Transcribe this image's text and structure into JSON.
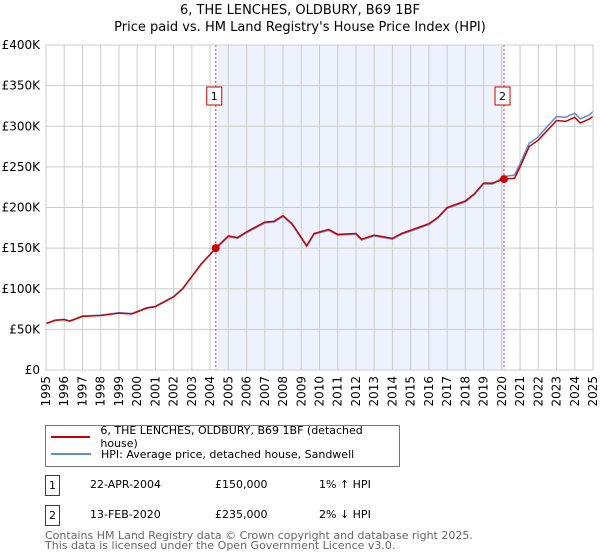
{
  "title": "6, THE LENCHES, OLDBURY, B69 1BF",
  "subtitle": "Price paid vs. HM Land Registry's House Price Index (HPI)",
  "colors": {
    "property": "#cc0000",
    "hpi": "#5b8fd4",
    "shade": "#eef2fc",
    "grid": "#cccccc"
  },
  "chart_data": {
    "type": "line",
    "xlim": [
      1995,
      2025
    ],
    "ylim": [
      0,
      400000
    ],
    "x_ticks": [
      "1995",
      "1996",
      "1997",
      "1998",
      "1999",
      "2000",
      "2001",
      "2002",
      "2003",
      "2004",
      "2005",
      "2006",
      "2007",
      "2008",
      "2009",
      "2010",
      "2011",
      "2012",
      "2013",
      "2014",
      "2015",
      "2016",
      "2017",
      "2018",
      "2019",
      "2020",
      "2021",
      "2022",
      "2023",
      "2024",
      "2025"
    ],
    "y_ticks": [
      {
        "v": 0,
        "label": "£0"
      },
      {
        "v": 50000,
        "label": "£50K"
      },
      {
        "v": 100000,
        "label": "£100K"
      },
      {
        "v": 150000,
        "label": "£150K"
      },
      {
        "v": 200000,
        "label": "£200K"
      },
      {
        "v": 250000,
        "label": "£250K"
      },
      {
        "v": 300000,
        "label": "£300K"
      },
      {
        "v": 350000,
        "label": "£350K"
      },
      {
        "v": 400000,
        "label": "£400K"
      }
    ],
    "grid": true,
    "shaded_range": [
      2004.31,
      2020.12
    ],
    "series": [
      {
        "name": "6, THE LENCHES, OLDBURY, B69 1BF (detached house)",
        "color": "#cc0000",
        "x": [
          1995,
          1995.5,
          1996,
          1996.3,
          1997,
          1998,
          1999,
          1999.7,
          2000.5,
          2001,
          2002,
          2002.5,
          2003,
          2003.5,
          2004.31,
          2005,
          2005.5,
          2006,
          2007,
          2007.5,
          2008,
          2008.5,
          2009.3,
          2009.7,
          2010.5,
          2011,
          2012,
          2012.3,
          2013,
          2014,
          2014.5,
          2015,
          2016,
          2016.5,
          2017,
          2018,
          2018.5,
          2019,
          2019.5,
          2020.12,
          2020.7,
          2021,
          2021.5,
          2022,
          2022.5,
          2023,
          2023.5,
          2024,
          2024.3,
          2024.8,
          2025
        ],
        "y": [
          57000,
          61000,
          62000,
          60000,
          66000,
          67000,
          70000,
          69000,
          76000,
          78000,
          90000,
          100000,
          115000,
          130000,
          150000,
          165000,
          163000,
          170000,
          182000,
          183000,
          190000,
          180000,
          153000,
          168000,
          173000,
          167000,
          168000,
          161000,
          166000,
          162000,
          168000,
          172000,
          180000,
          188000,
          200000,
          208000,
          217000,
          230000,
          230000,
          235000,
          236000,
          250000,
          275000,
          283000,
          295000,
          307000,
          306000,
          311000,
          304000,
          309000,
          312000
        ]
      },
      {
        "name": "HPI: Average price, detached house, Sandwell",
        "color": "#5b8fd4",
        "x": [
          1995,
          1995.5,
          1996,
          1996.3,
          1997,
          1998,
          1999,
          1999.7,
          2000.5,
          2001,
          2002,
          2002.5,
          2003,
          2003.5,
          2004.31,
          2005,
          2005.5,
          2006,
          2007,
          2007.5,
          2008,
          2008.5,
          2009.3,
          2009.7,
          2010.5,
          2011,
          2012,
          2012.3,
          2013,
          2014,
          2014.5,
          2015,
          2016,
          2016.5,
          2017,
          2018,
          2018.5,
          2019,
          2019.5,
          2020.12,
          2020.7,
          2021,
          2021.5,
          2022,
          2022.5,
          2023,
          2023.5,
          2024,
          2024.3,
          2024.8,
          2025
        ],
        "y": [
          57500,
          61500,
          62500,
          60500,
          66500,
          67500,
          70500,
          69500,
          76500,
          78500,
          90500,
          100500,
          115500,
          130500,
          149000,
          164000,
          162000,
          169000,
          181000,
          182000,
          189000,
          179000,
          152000,
          167000,
          172000,
          166000,
          167000,
          160000,
          165000,
          161000,
          167000,
          171000,
          179000,
          187000,
          199000,
          207000,
          216000,
          229000,
          229000,
          238000,
          240000,
          254000,
          279000,
          287000,
          300000,
          312000,
          311000,
          316000,
          309000,
          314000,
          318000
        ]
      }
    ],
    "markers": [
      {
        "label": "1",
        "x": 2004.31,
        "y": 150000
      },
      {
        "label": "2",
        "x": 2020.12,
        "y": 235000
      }
    ]
  },
  "transactions": [
    {
      "num": "1",
      "date": "22-APR-2004",
      "price": "£150,000",
      "hpi": "1% ↑ HPI"
    },
    {
      "num": "2",
      "date": "13-FEB-2020",
      "price": "£235,000",
      "hpi": "2% ↓ HPI"
    }
  ],
  "footer": [
    "Contains HM Land Registry data © Crown copyright and database right 2025.",
    "This data is licensed under the Open Government Licence v3.0."
  ]
}
